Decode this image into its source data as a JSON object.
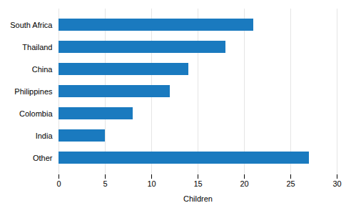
{
  "chart_data": {
    "type": "bar",
    "orientation": "horizontal",
    "categories": [
      "Other",
      "India",
      "Colombia",
      "Philippines",
      "China",
      "Thailand",
      "South Africa"
    ],
    "values": [
      27,
      5,
      8,
      12,
      14,
      18,
      21
    ],
    "color": "#1a7abf",
    "xlabel": "Children",
    "xlim": [
      0,
      30
    ],
    "xticks": [
      0,
      5,
      10,
      15,
      20,
      25,
      30
    ],
    "grid": true
  }
}
